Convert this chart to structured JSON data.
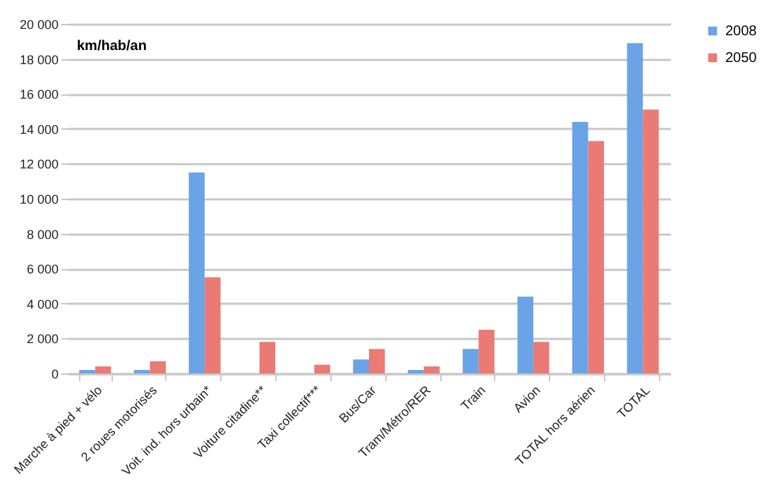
{
  "chart_data": {
    "type": "bar",
    "ylabel": "km/hab/an",
    "categories": [
      "Marche à pied + vélo",
      "2 roues motorisés",
      "Voit. ind. hors urbain*",
      "Voiture citadine**",
      "Taxi collectif***",
      "Bus/Car",
      "Tram/Métro/RER",
      "Train",
      "Avion",
      "TOTAL hors aérien",
      "TOTAL"
    ],
    "series": [
      {
        "name": "2008",
        "color": "#6aa4e6",
        "values": [
          200,
          200,
          11500,
          null,
          null,
          800,
          200,
          1400,
          4400,
          14400,
          18900
        ]
      },
      {
        "name": "2050",
        "color": "#ea7b74",
        "values": [
          400,
          700,
          5500,
          1800,
          500,
          1400,
          400,
          2500,
          1800,
          13300,
          15100
        ]
      }
    ],
    "ylim": [
      0,
      20000
    ],
    "yticks": [
      0,
      {
        "value": 2000,
        "label": "2 000"
      },
      {
        "value": 4000,
        "label": "4 000"
      },
      {
        "value": 6000,
        "label": "6 000"
      },
      {
        "value": 8000,
        "label": "8 000"
      },
      {
        "value": 10000,
        "label": "10 000"
      },
      {
        "value": 12000,
        "label": "12 000"
      },
      {
        "value": 14000,
        "label": "14 000"
      },
      {
        "value": 16000,
        "label": "16 000"
      },
      {
        "value": 18000,
        "label": "18 000"
      },
      {
        "value": 20000,
        "label": "20 000"
      }
    ],
    "grid": "y",
    "legend": "right"
  }
}
